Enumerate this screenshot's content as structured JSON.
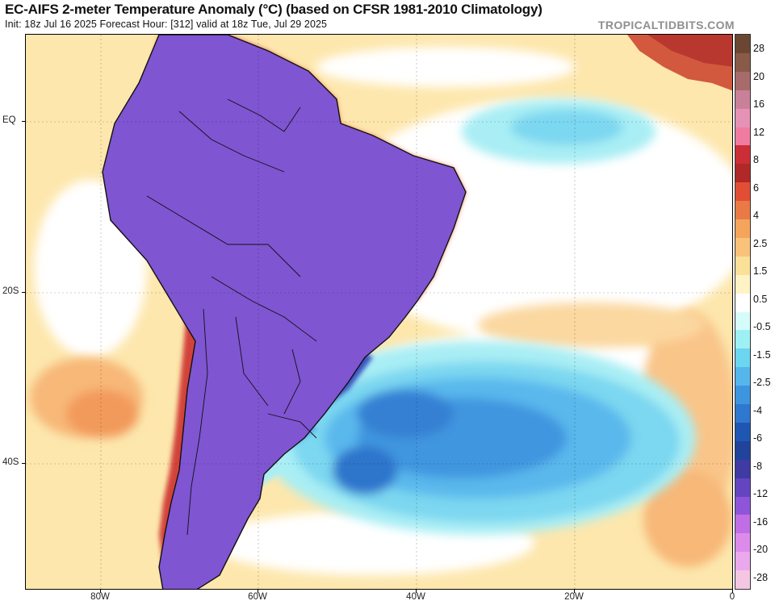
{
  "header": {
    "title": "EC-AIFS 2-meter Temperature Anomaly (°C) (based on CFSR 1981-2010 Climatology)",
    "subtitle": "Init: 18z Jul 16 2025   Forecast Hour: [312]   valid at 18z Tue, Jul 29 2025",
    "brand": "TROPICALTIDBITS.COM"
  },
  "map": {
    "lat_labels": [
      "EQ",
      "20S",
      "40S"
    ],
    "lon_labels": [
      "80W",
      "60W",
      "40W",
      "20W",
      "0"
    ]
  },
  "legend": {
    "labels": [
      "28",
      "20",
      "16",
      "12",
      "8",
      "6",
      "4",
      "2.5",
      "1.5",
      "0.5",
      "-0.5",
      "-1.5",
      "-2.5",
      "-4",
      "-6",
      "-8",
      "-12",
      "-16",
      "-20",
      "-28"
    ],
    "colors": [
      "#6b4733",
      "#8a5a48",
      "#a86b6b",
      "#c98099",
      "#e592b6",
      "#f07ba0",
      "#cc2e37",
      "#b02828",
      "#e24e35",
      "#e97a45",
      "#f5a45c",
      "#f8c27a",
      "#fbe09a",
      "#fff3c6",
      "#ffffff",
      "#d6fbfb",
      "#9df0f4",
      "#6cd5ef",
      "#55b6ec",
      "#3e95df",
      "#2f78cf",
      "#1f56b3",
      "#21439c",
      "#3f3aa4",
      "#6544c0",
      "#8f55d9",
      "#bf6fe3",
      "#dd8bea",
      "#eaa9ec",
      "#f3c7e2"
    ]
  }
}
